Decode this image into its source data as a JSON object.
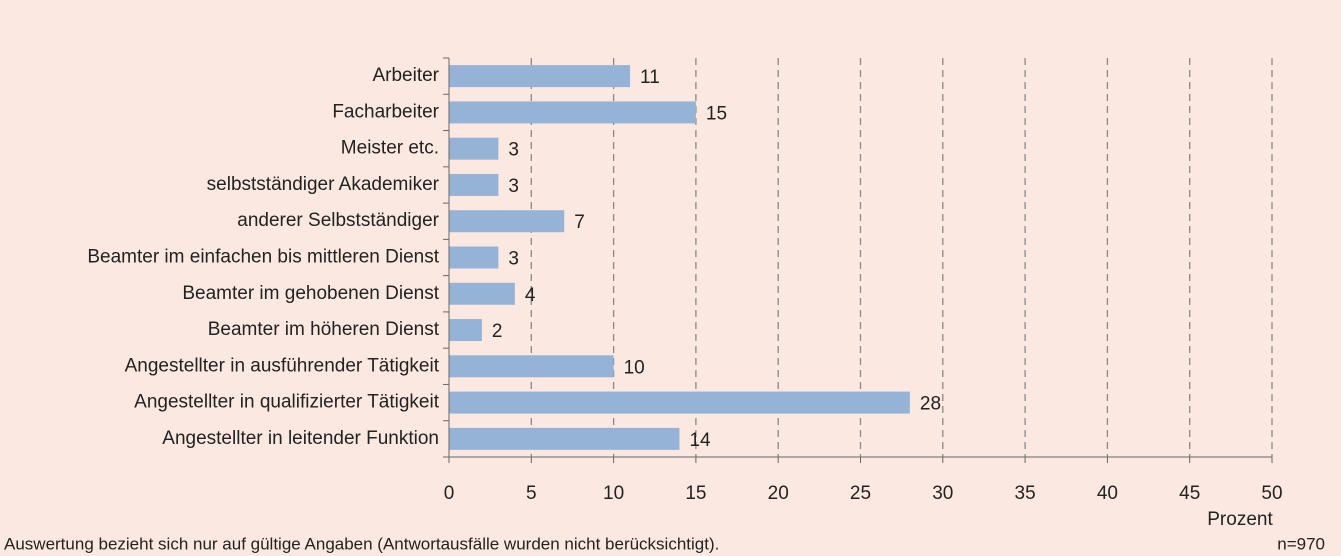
{
  "chart_data": {
    "type": "hbar",
    "categories": [
      "Arbeiter",
      "Facharbeiter",
      "Meister etc.",
      "selbstständiger Akademiker",
      "anderer Selbstständiger",
      "Beamter im einfachen bis mittleren Dienst",
      "Beamter im gehobenen Dienst",
      "Beamter im höheren Dienst",
      "Angestellter in ausführender Tätigkeit",
      "Angestellter in qualifizierter Tätigkeit",
      "Angestellter in leitender Funktion"
    ],
    "values": [
      11,
      15,
      3,
      3,
      7,
      3,
      4,
      2,
      10,
      28,
      14
    ],
    "color": "#95b3d7",
    "xlim": [
      0,
      50
    ],
    "xticks": [
      0,
      5,
      10,
      15,
      20,
      25,
      30,
      35,
      40,
      45,
      50
    ],
    "xlabel": "Prozent",
    "grid": true,
    "footnote": "Auswertung bezieht sich nur auf gültige Angaben (Antwortausfälle wurden nicht berücksichtigt).",
    "sample_size": "n=970"
  }
}
